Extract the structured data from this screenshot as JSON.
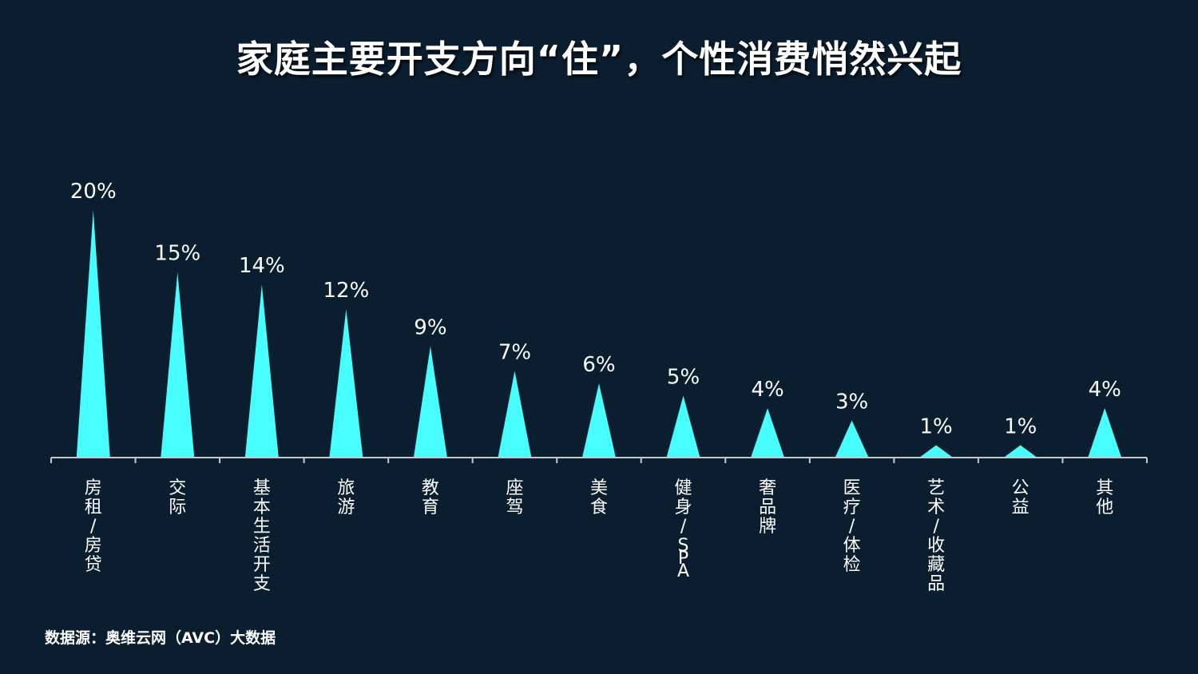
{
  "colors": {
    "background": "#0b1e30",
    "bar": "#47fdfd",
    "axis": "#c8c8c8",
    "text": "#ffffff"
  },
  "chart_data": {
    "type": "bar",
    "bar_shape": "triangle",
    "title": "家庭主要开支方向“住”，个性消费悄然兴起",
    "categories": [
      "房租/房贷",
      "交际",
      "基本生活开支",
      "旅游",
      "教育",
      "座驾",
      "美食",
      "健身/SPA",
      "奢品牌",
      "医疗/体检",
      "艺术/收藏品",
      "公益",
      "其他"
    ],
    "series": [
      {
        "values": [
          20,
          15,
          14,
          12,
          9,
          7,
          6,
          5,
          4,
          3,
          1,
          1,
          4
        ],
        "value_labels": [
          "20%",
          "15%",
          "14%",
          "12%",
          "9%",
          "7%",
          "6%",
          "5%",
          "4%",
          "3%",
          "1%",
          "1%",
          "4%"
        ]
      }
    ],
    "unit": "%",
    "ylim": [
      0,
      20
    ],
    "grid": false,
    "legend": "none",
    "tick_label_orientation": "vertical"
  },
  "source": "数据源：奥维云网（AVC）大数据"
}
